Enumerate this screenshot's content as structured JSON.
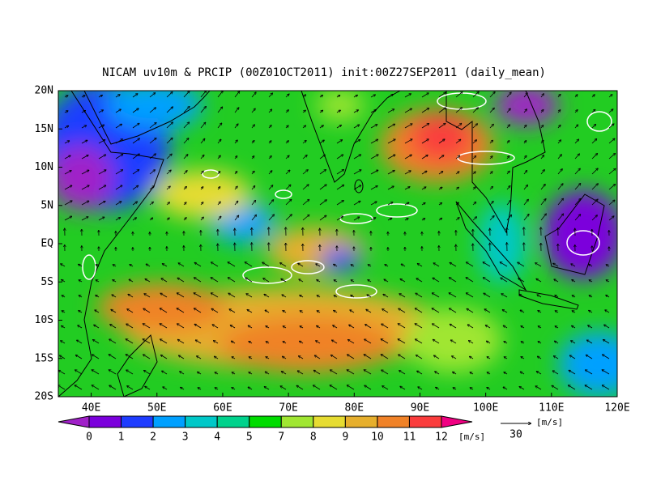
{
  "title": "NICAM uv10m & PRCIP (00Z01OCT2011) init:00Z27SEP2011 (daily_mean)",
  "map": {
    "lon_range": [
      35,
      120
    ],
    "lat_range": [
      -20,
      20
    ],
    "lat_labels": [
      {
        "value": 20,
        "label": "20N"
      },
      {
        "value": 15,
        "label": "15N"
      },
      {
        "value": 10,
        "label": "10N"
      },
      {
        "value": 5,
        "label": "5N"
      },
      {
        "value": 0,
        "label": "EQ"
      },
      {
        "value": -5,
        "label": "5S"
      },
      {
        "value": -10,
        "label": "10S"
      },
      {
        "value": -15,
        "label": "15S"
      },
      {
        "value": -20,
        "label": "20S"
      }
    ],
    "lon_labels": [
      {
        "value": 40,
        "label": "40E"
      },
      {
        "value": 50,
        "label": "50E"
      },
      {
        "value": 60,
        "label": "60E"
      },
      {
        "value": 70,
        "label": "70E"
      },
      {
        "value": 80,
        "label": "80E"
      },
      {
        "value": 90,
        "label": "90E"
      },
      {
        "value": 100,
        "label": "100E"
      },
      {
        "value": 110,
        "label": "110E"
      },
      {
        "value": 120,
        "label": "120E"
      }
    ]
  },
  "colorbar": {
    "levels": [
      0,
      1,
      2,
      3,
      4,
      5,
      7,
      8,
      9,
      10,
      11,
      12
    ],
    "colors": [
      "#a020c8",
      "#7b00dc",
      "#1e3cff",
      "#00a0ff",
      "#00c8c8",
      "#00d28c",
      "#00dc00",
      "#a0e632",
      "#e6dc32",
      "#e6af2d",
      "#f08228",
      "#fa3c3c",
      "#f00082"
    ],
    "unit": "[m/s]"
  },
  "vector_key": {
    "value": "30",
    "unit": "[m/s]"
  }
}
